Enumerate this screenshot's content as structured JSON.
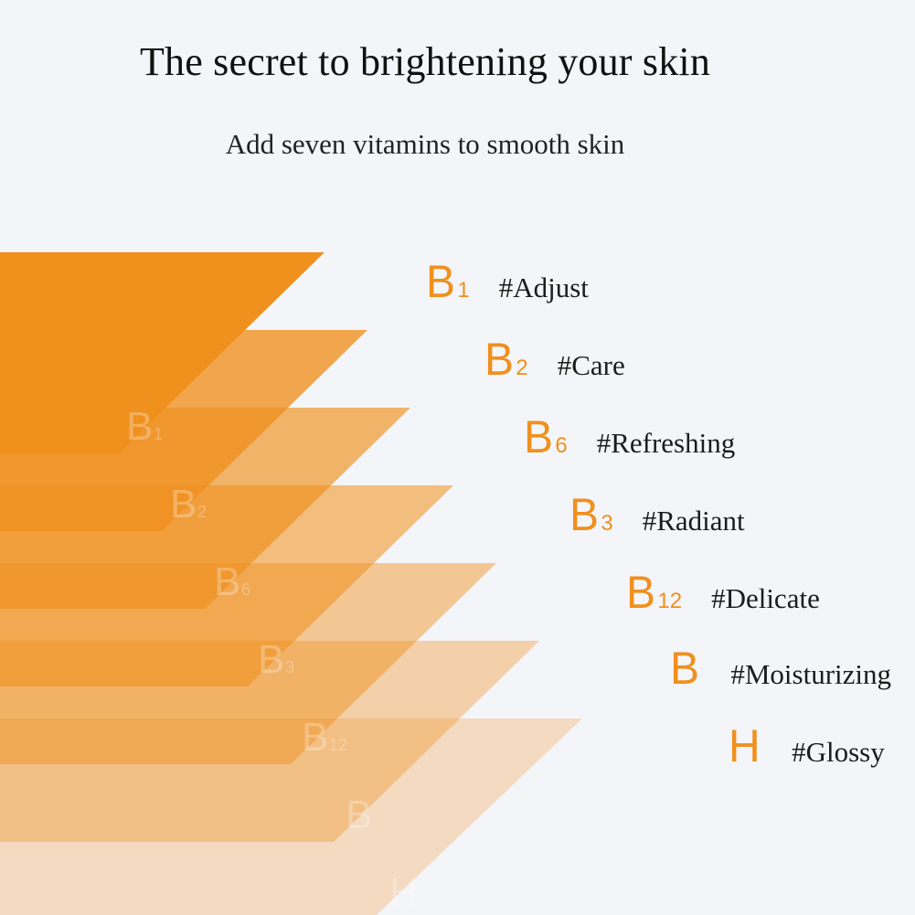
{
  "header": {
    "title": "The secret to brightening your skin",
    "subtitle": "Add seven vitamins to smooth skin"
  },
  "colors": {
    "accent": "#f0901d",
    "background": "#f4f5f9",
    "text": "#111111"
  },
  "vitamins": [
    {
      "letter": "B",
      "sub": "1",
      "tag": "#Adjust",
      "ghost_letter": "B",
      "ghost_sub": "1"
    },
    {
      "letter": "B",
      "sub": "2",
      "tag": "#Care",
      "ghost_letter": "B",
      "ghost_sub": "2"
    },
    {
      "letter": "B",
      "sub": "6",
      "tag": "#Refreshing",
      "ghost_letter": "B",
      "ghost_sub": "6"
    },
    {
      "letter": "B",
      "sub": "3",
      "tag": "#Radiant",
      "ghost_letter": "B",
      "ghost_sub": "3"
    },
    {
      "letter": "B",
      "sub": "12",
      "tag": "#Delicate",
      "ghost_letter": "B",
      "ghost_sub": "12"
    },
    {
      "letter": "B",
      "sub": "",
      "tag": "#Moisturizing",
      "ghost_letter": "B",
      "ghost_sub": ""
    },
    {
      "letter": "H",
      "sub": "",
      "tag": "#Glossy",
      "ghost_letter": "H",
      "ghost_sub": ""
    }
  ]
}
